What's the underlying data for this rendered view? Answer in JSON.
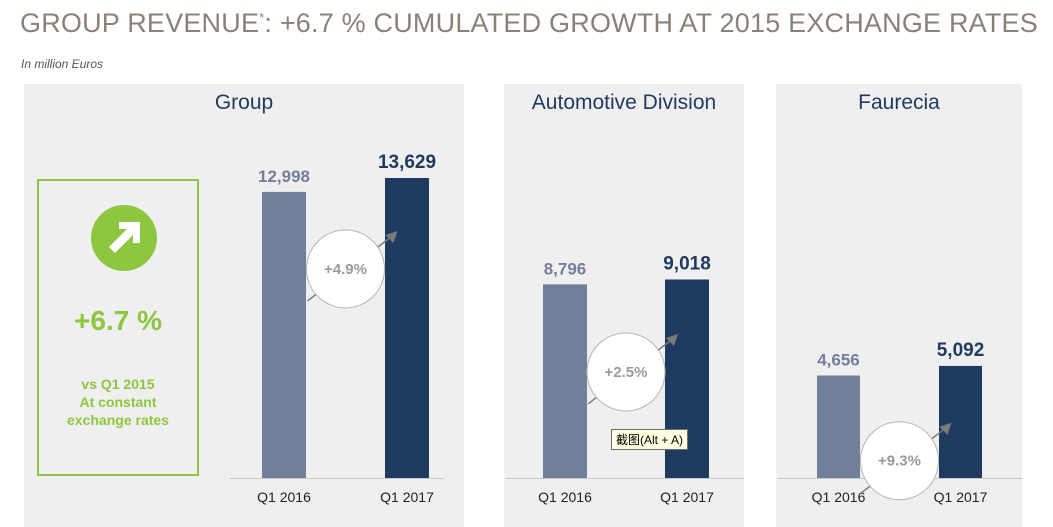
{
  "header": {
    "title_main": "GROUP REVENUE",
    "title_sup": "*",
    "title_rest": ": +6.7 % CUMULATED GROWTH AT 2015 EXCHANGE RATES",
    "subtitle": "In million Euros"
  },
  "highlight": {
    "icon": "up-right-arrow-icon",
    "value": "+6.7 %",
    "note_line1": "vs Q1 2015",
    "note_line2": "At constant",
    "note_line3": "exchange rates"
  },
  "tooltip": {
    "text": "截图(Alt + A)"
  },
  "colors": {
    "q1_2016": "#717f99",
    "q1_2017": "#1f3a5f",
    "accent_green": "#8dc63f",
    "panel_bg": "#efefef",
    "title_gray": "#8a8178"
  },
  "chart_data": [
    {
      "type": "bar",
      "title": "Group",
      "categories": [
        "Q1 2016",
        "Q1 2017"
      ],
      "values": [
        12998,
        13629
      ],
      "value_labels": [
        "12,998",
        "13,629"
      ],
      "growth": "+4.9%"
    },
    {
      "type": "bar",
      "title": "Automotive Division",
      "categories": [
        "Q1 2016",
        "Q1 2017"
      ],
      "values": [
        8796,
        9018
      ],
      "value_labels": [
        "8,796",
        "9,018"
      ],
      "growth": "+2.5%"
    },
    {
      "type": "bar",
      "title": "Faurecia",
      "categories": [
        "Q1 2016",
        "Q1 2017"
      ],
      "values": [
        4656,
        5092
      ],
      "value_labels": [
        "4,656",
        "5,092"
      ],
      "growth": "+9.3%"
    }
  ]
}
